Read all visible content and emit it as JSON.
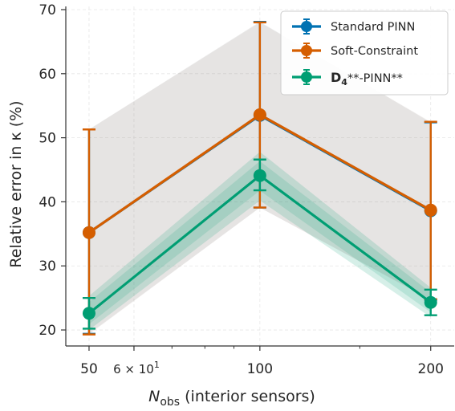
{
  "chart_data": {
    "type": "line",
    "xscale": "log",
    "x": [
      50,
      100,
      200
    ],
    "xlim": [
      45.5,
      220
    ],
    "ylim": [
      17.5,
      70.5
    ],
    "xticks": [
      {
        "value": 50,
        "label": "50"
      },
      {
        "value": 60,
        "label": "6 × 10",
        "sup": "1"
      },
      {
        "value": 100,
        "label": "100"
      },
      {
        "value": 200,
        "label": "200"
      }
    ],
    "yticks": [
      20,
      30,
      40,
      50,
      60,
      70
    ],
    "xlabel": {
      "main": "N",
      "sub": "obs",
      "rest": " (interior sensors)"
    },
    "ylabel": "Relative error in κ (%)",
    "grid": true,
    "legend_position": "top-right",
    "series": [
      {
        "name": "Standard PINN",
        "color": "#0072B2",
        "values": [
          35.2,
          53.5,
          38.6
        ],
        "err_low": [
          19.4,
          39.1,
          24.7
        ],
        "err_high": [
          51.3,
          68.1,
          52.4
        ],
        "band_low": [
          19.4,
          39.1,
          24.7
        ],
        "band_high": [
          51.3,
          68.1,
          52.4
        ]
      },
      {
        "name": "Soft-Constraint",
        "color": "#D55E00",
        "values": [
          35.2,
          53.6,
          38.7
        ],
        "err_low": [
          19.3,
          39.1,
          24.8
        ],
        "err_high": [
          51.3,
          68.0,
          52.5
        ],
        "band_low": [
          19.3,
          39.1,
          24.8
        ],
        "band_high": [
          51.3,
          68.0,
          52.5
        ]
      },
      {
        "name": "D4**-PINN**",
        "legend_parts": {
          "bold": "D",
          "sub": "4",
          "rest": "**-PINN**"
        },
        "color": "#009E73",
        "values": [
          22.6,
          44.1,
          24.3
        ],
        "err_low": [
          20.2,
          41.8,
          22.3
        ],
        "err_high": [
          25.0,
          46.6,
          26.3
        ],
        "band_low": [
          20.0,
          40.2,
          22.0
        ],
        "band_high": [
          25.3,
          47.8,
          26.6
        ]
      }
    ]
  }
}
